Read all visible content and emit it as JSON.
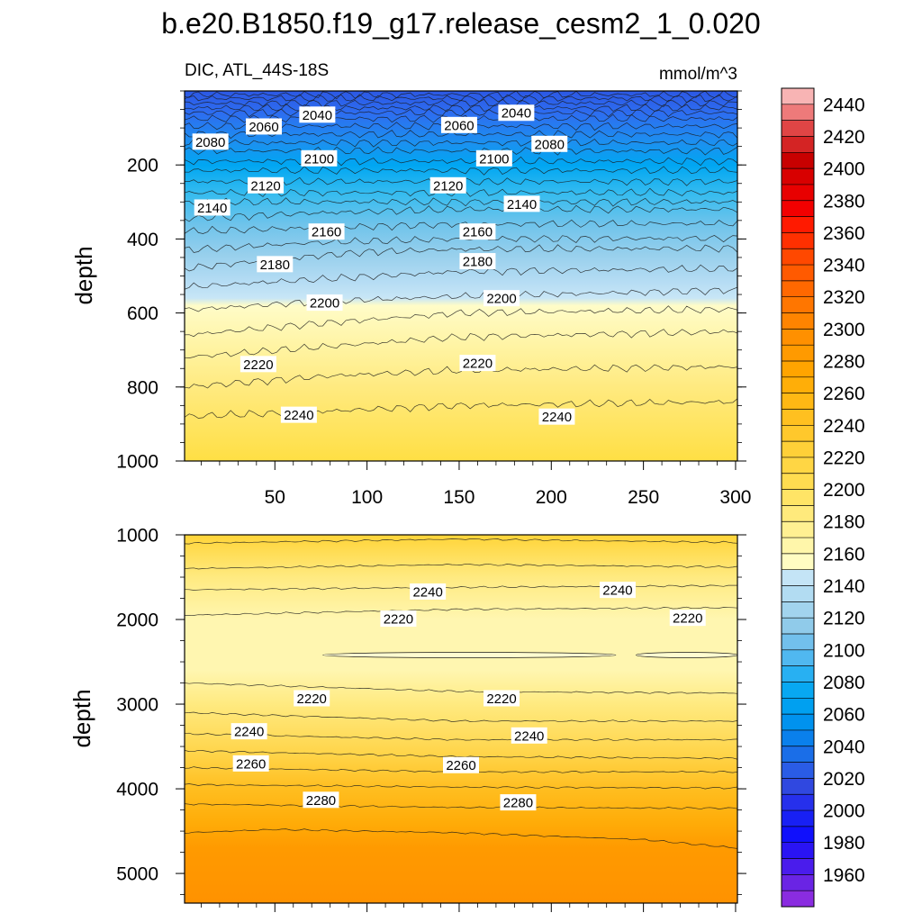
{
  "figure": {
    "title": "b.e20.B1850.f19_g17.release_cesm2_1_0.020",
    "left_subtitle": "DIC, ATL_44S-18S",
    "right_subtitle": "mmol/m^3"
  },
  "chart_data": [
    {
      "type": "contour",
      "panel": "upper",
      "ylabel": "depth",
      "xlabel": "",
      "xlim": [
        1,
        301
      ],
      "ylim": [
        1000,
        0
      ],
      "yticks": [
        "200",
        "400",
        "600",
        "800",
        "1000"
      ],
      "xticks": [
        "50",
        "100",
        "150",
        "200",
        "250",
        "300"
      ],
      "contour_interval": 10,
      "levels": [
        {
          "value": 2000,
          "depth_at_x": [
            [
              1,
              10
            ],
            [
              301,
              10
            ]
          ]
        },
        {
          "value": 2010,
          "depth_at_x": [
            [
              1,
              20
            ],
            [
              301,
              20
            ]
          ]
        },
        {
          "value": 2020,
          "depth_at_x": [
            [
              1,
              33
            ],
            [
              301,
              33
            ]
          ]
        },
        {
          "value": 2030,
          "depth_at_x": [
            [
              1,
              46
            ],
            [
              301,
              46
            ]
          ]
        },
        {
          "value": 2040,
          "depth_at_x": [
            [
              1,
              59
            ],
            [
              301,
              59
            ]
          ]
        },
        {
          "value": 2050,
          "depth_at_x": [
            [
              1,
              75
            ],
            [
              301,
              75
            ]
          ]
        },
        {
          "value": 2060,
          "depth_at_x": [
            [
              1,
              95
            ],
            [
              301,
              95
            ]
          ]
        },
        {
          "value": 2070,
          "depth_at_x": [
            [
              1,
              117
            ],
            [
              301,
              117
            ]
          ]
        },
        {
          "value": 2080,
          "depth_at_x": [
            [
              1,
              140
            ],
            [
              301,
              140
            ]
          ]
        },
        {
          "value": 2090,
          "depth_at_x": [
            [
              1,
              162
            ],
            [
              301,
              162
            ]
          ]
        },
        {
          "value": 2100,
          "depth_at_x": [
            [
              1,
              190
            ],
            [
              301,
              190
            ]
          ]
        },
        {
          "value": 2110,
          "depth_at_x": [
            [
              1,
              215
            ],
            [
              301,
              215
            ]
          ]
        },
        {
          "value": 2120,
          "depth_at_x": [
            [
              1,
              245
            ],
            [
              301,
              245
            ]
          ]
        },
        {
          "value": 2130,
          "depth_at_x": [
            [
              1,
              275
            ],
            [
              301,
              275
            ]
          ]
        },
        {
          "value": 2140,
          "depth_at_x": [
            [
              1,
              300
            ],
            [
              301,
              300
            ]
          ]
        },
        {
          "value": 2150,
          "depth_at_x": [
            [
              1,
              345
            ],
            [
              70,
              330
            ],
            [
              150,
              320
            ],
            [
              301,
              320
            ]
          ]
        },
        {
          "value": 2160,
          "depth_at_x": [
            [
              1,
              380
            ],
            [
              70,
              370
            ],
            [
              150,
              360
            ],
            [
              301,
              358
            ]
          ]
        },
        {
          "value": 2170,
          "depth_at_x": [
            [
              1,
              430
            ],
            [
              70,
              410
            ],
            [
              150,
              400
            ],
            [
              301,
              398
            ]
          ]
        },
        {
          "value": 2180,
          "depth_at_x": [
            [
              1,
              480
            ],
            [
              50,
              455
            ],
            [
              100,
              435
            ],
            [
              150,
              428
            ],
            [
              301,
              425
            ]
          ]
        },
        {
          "value": 2190,
          "depth_at_x": [
            [
              1,
              530
            ],
            [
              70,
              510
            ],
            [
              150,
              488
            ],
            [
              301,
              480
            ]
          ]
        },
        {
          "value": 2200,
          "depth_at_x": [
            [
              1,
              592
            ],
            [
              70,
              570
            ],
            [
              150,
              555
            ],
            [
              301,
              538
            ]
          ]
        },
        {
          "value": 2210,
          "depth_at_x": [
            [
              1,
              660
            ],
            [
              70,
              630
            ],
            [
              150,
              600
            ],
            [
              301,
              590
            ]
          ]
        },
        {
          "value": 2220,
          "depth_at_x": [
            [
              1,
              720
            ],
            [
              80,
              690
            ],
            [
              150,
              665
            ],
            [
              301,
              650
            ]
          ]
        },
        {
          "value": 2230,
          "depth_at_x": [
            [
              1,
              800
            ],
            [
              80,
              770
            ],
            [
              150,
              755
            ],
            [
              301,
              745
            ]
          ]
        },
        {
          "value": 2240,
          "depth_at_x": [
            [
              1,
              880
            ],
            [
              80,
              865
            ],
            [
              150,
              850
            ],
            [
              301,
              840
            ]
          ]
        }
      ],
      "labels": [
        {
          "text": "2040",
          "x": 73,
          "depth": 64
        },
        {
          "text": "2040",
          "x": 181,
          "depth": 59
        },
        {
          "text": "2060",
          "x": 44,
          "depth": 96
        },
        {
          "text": "2060",
          "x": 150,
          "depth": 92
        },
        {
          "text": "2080",
          "x": 15,
          "depth": 137
        },
        {
          "text": "2080",
          "x": 199,
          "depth": 143
        },
        {
          "text": "2100",
          "x": 74,
          "depth": 182
        },
        {
          "text": "2100",
          "x": 169,
          "depth": 182
        },
        {
          "text": "2120",
          "x": 45,
          "depth": 255
        },
        {
          "text": "2120",
          "x": 144,
          "depth": 255
        },
        {
          "text": "2140",
          "x": 16,
          "depth": 315
        },
        {
          "text": "2140",
          "x": 184,
          "depth": 305
        },
        {
          "text": "2160",
          "x": 78,
          "depth": 380
        },
        {
          "text": "2160",
          "x": 160,
          "depth": 380
        },
        {
          "text": "2180",
          "x": 50,
          "depth": 468
        },
        {
          "text": "2180",
          "x": 160,
          "depth": 460
        },
        {
          "text": "2200",
          "x": 77,
          "depth": 572
        },
        {
          "text": "2200",
          "x": 173,
          "depth": 560
        },
        {
          "text": "2220",
          "x": 41,
          "depth": 738
        },
        {
          "text": "2220",
          "x": 160,
          "depth": 735
        },
        {
          "text": "2240",
          "x": 63,
          "depth": 875
        },
        {
          "text": "2240",
          "x": 203,
          "depth": 880
        }
      ]
    },
    {
      "type": "contour",
      "panel": "lower",
      "ylabel": "depth",
      "xlabel": "",
      "xlim": [
        1,
        301
      ],
      "ylim": [
        5350,
        1000
      ],
      "yticks": [
        "1000",
        "2000",
        "3000",
        "4000",
        "5000"
      ],
      "contour_interval": 10,
      "levels": [
        {
          "value": 2260,
          "depth_at_x": [
            [
              1,
              1100
            ],
            [
              150,
              1050
            ],
            [
              301,
              1090
            ]
          ]
        },
        {
          "value": 2250,
          "depth_at_x": [
            [
              1,
              1400
            ],
            [
              150,
              1350
            ],
            [
              301,
              1380
            ]
          ]
        },
        {
          "value": 2240,
          "depth_at_x": [
            [
              1,
              1650
            ],
            [
              150,
              1620
            ],
            [
              301,
              1600
            ]
          ]
        },
        {
          "value": 2230,
          "depth_at_x": [
            [
              1,
              1950
            ],
            [
              150,
              1880
            ],
            [
              301,
              1860
            ]
          ]
        },
        {
          "value": 2220,
          "depth_at_x": [
            [
              1,
              2750
            ],
            [
              150,
              2850
            ],
            [
              301,
              2870
            ]
          ]
        },
        {
          "value": 2230,
          "depth_at_x": [
            [
              1,
              3100
            ],
            [
              150,
              3200
            ],
            [
              301,
              3200
            ]
          ]
        },
        {
          "value": 2240,
          "depth_at_x": [
            [
              1,
              3350
            ],
            [
              150,
              3420
            ],
            [
              301,
              3420
            ]
          ]
        },
        {
          "value": 2250,
          "depth_at_x": [
            [
              1,
              3550
            ],
            [
              150,
              3620
            ],
            [
              301,
              3640
            ]
          ]
        },
        {
          "value": 2260,
          "depth_at_x": [
            [
              1,
              3750
            ],
            [
              150,
              3800
            ],
            [
              301,
              3800
            ]
          ]
        },
        {
          "value": 2270,
          "depth_at_x": [
            [
              1,
              3950
            ],
            [
              150,
              3980
            ],
            [
              301,
              3990
            ]
          ]
        },
        {
          "value": 2280,
          "depth_at_x": [
            [
              1,
              4180
            ],
            [
              150,
              4220
            ],
            [
              301,
              4230
            ]
          ]
        },
        {
          "value": 2290,
          "depth_at_x": [
            [
              1,
              4520
            ],
            [
              50,
              4480
            ],
            [
              150,
              4520
            ],
            [
              250,
              4600
            ],
            [
              301,
              4700
            ]
          ]
        }
      ],
      "closed_contours": [
        {
          "value": 2210,
          "x_range": [
            76,
            235
          ],
          "depth": 2420
        },
        {
          "value": 2210,
          "x_range": [
            246,
            301
          ],
          "depth": 2420
        }
      ],
      "labels": [
        {
          "text": "2240",
          "x": 133,
          "depth": 1670
        },
        {
          "text": "2240",
          "x": 236,
          "depth": 1650
        },
        {
          "text": "2220",
          "x": 117,
          "depth": 1990
        },
        {
          "text": "2220",
          "x": 274,
          "depth": 1980
        },
        {
          "text": "2220",
          "x": 70,
          "depth": 2930
        },
        {
          "text": "2220",
          "x": 173,
          "depth": 2930
        },
        {
          "text": "2240",
          "x": 36,
          "depth": 3320
        },
        {
          "text": "2240",
          "x": 188,
          "depth": 3370
        },
        {
          "text": "2260",
          "x": 37,
          "depth": 3700
        },
        {
          "text": "2260",
          "x": 151,
          "depth": 3720
        },
        {
          "text": "2280",
          "x": 75,
          "depth": 4130
        },
        {
          "text": "2280",
          "x": 182,
          "depth": 4160
        }
      ]
    }
  ],
  "colorbar": {
    "labels": [
      "2440",
      "2420",
      "2400",
      "2380",
      "2360",
      "2340",
      "2320",
      "2300",
      "2280",
      "2260",
      "2240",
      "2220",
      "2200",
      "2180",
      "2160",
      "2140",
      "2120",
      "2100",
      "2080",
      "2060",
      "2040",
      "2020",
      "2000",
      "1980",
      "1960"
    ],
    "boundaries_top_to_bottom_start": 2450,
    "boundary_step": -10,
    "colors_top_to_bottom": [
      "#f8b4b4",
      "#ee7a7a",
      "#e04545",
      "#d42424",
      "#c80000",
      "#d80000",
      "#e80000",
      "#f20000",
      "#ff1a00",
      "#ff3000",
      "#ff4800",
      "#ff5a00",
      "#ff6800",
      "#ff7600",
      "#ff8400",
      "#ff9000",
      "#ff9a00",
      "#ffa400",
      "#ffae08",
      "#ffb814",
      "#ffc020",
      "#ffc82c",
      "#ffd038",
      "#ffd644",
      "#ffdc50",
      "#ffe466",
      "#ffea7c",
      "#fff092",
      "#fff6aa",
      "#fffcc2",
      "#c4e4f6",
      "#b2dcf2",
      "#a2d4ee",
      "#90cbea",
      "#72c0ec",
      "#50b8f0",
      "#28b0f2",
      "#08a8f2",
      "#00a0f0",
      "#0092ee",
      "#0a80ec",
      "#1a6ee8",
      "#2a5ce6",
      "#3048e0",
      "#2630ec",
      "#1820f4",
      "#1010fc",
      "#2a14f4",
      "#4a1cec",
      "#6a24e4",
      "#8a2ce0"
    ]
  },
  "panel_colors": {
    "upper_fill_stops": [
      {
        "depth": 0,
        "color": "#2c58e4"
      },
      {
        "depth": 60,
        "color": "#2d6df0"
      },
      {
        "depth": 140,
        "color": "#1c90f0"
      },
      {
        "depth": 200,
        "color": "#00a6f2"
      },
      {
        "depth": 280,
        "color": "#37bcef"
      },
      {
        "depth": 360,
        "color": "#6ec3eb"
      },
      {
        "depth": 440,
        "color": "#96cfec"
      },
      {
        "depth": 520,
        "color": "#b7ddf4"
      },
      {
        "depth": 560,
        "color": "#c8e6f6"
      },
      {
        "depth": 580,
        "color": "#fffcc8"
      },
      {
        "depth": 700,
        "color": "#fff3a0"
      },
      {
        "depth": 800,
        "color": "#ffea80"
      },
      {
        "depth": 1000,
        "color": "#ffdf44"
      }
    ],
    "lower_fill_stops": [
      {
        "depth": 1000,
        "color": "#ffd438"
      },
      {
        "depth": 1500,
        "color": "#ffea80"
      },
      {
        "depth": 2000,
        "color": "#fff6b0"
      },
      {
        "depth": 2600,
        "color": "#fff6b0"
      },
      {
        "depth": 3000,
        "color": "#ffea80"
      },
      {
        "depth": 3600,
        "color": "#ffd448"
      },
      {
        "depth": 4000,
        "color": "#ffbe20"
      },
      {
        "depth": 4400,
        "color": "#ffac08"
      },
      {
        "depth": 4700,
        "color": "#ff9a00"
      },
      {
        "depth": 5350,
        "color": "#ff9200"
      }
    ]
  }
}
